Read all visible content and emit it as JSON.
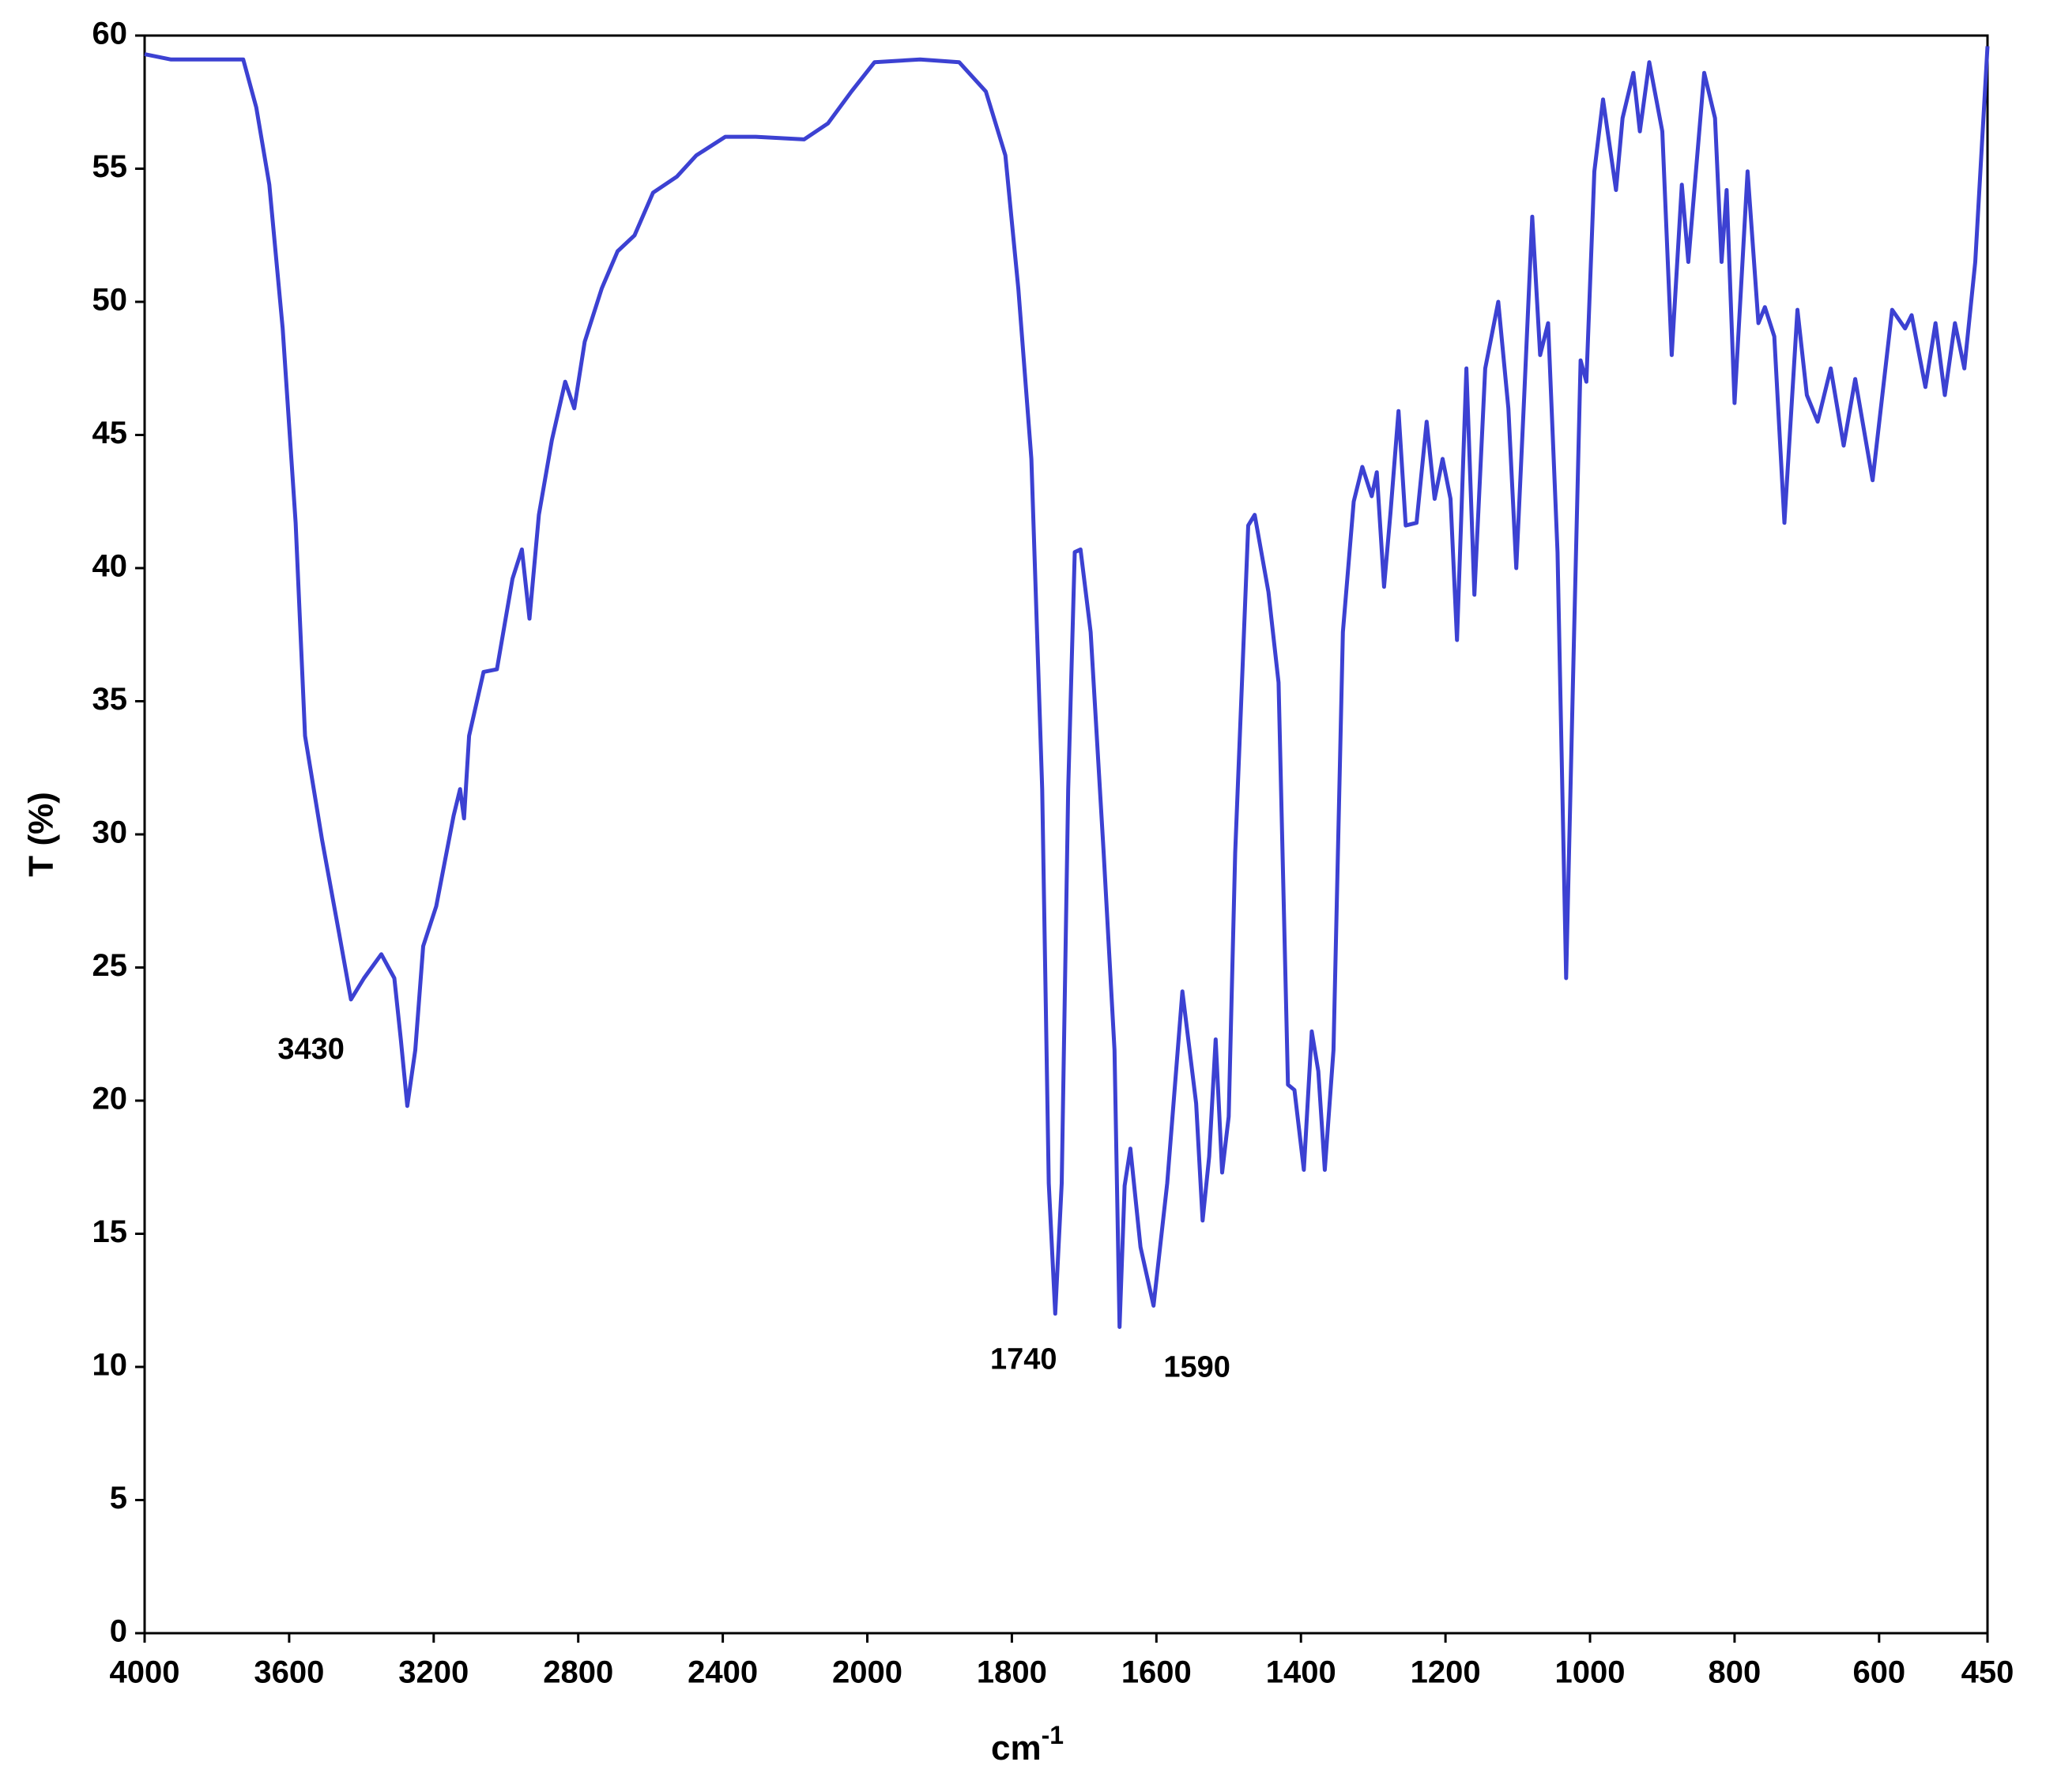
{
  "chart_data": {
    "type": "line",
    "xlabel": {
      "text": "cm",
      "superscript": "-1"
    },
    "ylabel": "T (%)",
    "xlim": [
      4000,
      450
    ],
    "ylim": [
      0,
      60
    ],
    "xbreak": 2000,
    "xbreak_factor": 2,
    "xticks": [
      4000,
      3600,
      3200,
      2800,
      2400,
      2000,
      1800,
      1600,
      1400,
      1200,
      1000,
      800,
      600,
      450
    ],
    "yticks": [
      0,
      5,
      10,
      15,
      20,
      25,
      30,
      35,
      40,
      45,
      50,
      55,
      60
    ],
    "x": [
      4000,
      3927,
      3855,
      3727,
      3691,
      3655,
      3618,
      3582,
      3556,
      3509,
      3462,
      3429,
      3393,
      3345,
      3309,
      3291,
      3273,
      3251,
      3229,
      3193,
      3145,
      3127,
      3116,
      3102,
      3062,
      3025,
      2982,
      2956,
      2935,
      2909,
      2873,
      2836,
      2811,
      2782,
      2735,
      2691,
      2644,
      2593,
      2527,
      2473,
      2393,
      2309,
      2175,
      2109,
      2044,
      1990,
      1927,
      1873,
      1836,
      1809,
      1791,
      1773,
      1758,
      1749,
      1740,
      1731,
      1722,
      1713,
      1705,
      1691,
      1673,
      1658,
      1651,
      1644,
      1636,
      1622,
      1604,
      1585,
      1564,
      1545,
      1536,
      1527,
      1518,
      1509,
      1500,
      1491,
      1473,
      1464,
      1445,
      1431,
      1418,
      1409,
      1396,
      1385,
      1376,
      1367,
      1355,
      1342,
      1327,
      1315,
      1302,
      1295,
      1285,
      1276,
      1265,
      1255,
      1240,
      1226,
      1215,
      1204,
      1193,
      1184,
      1171,
      1160,
      1145,
      1127,
      1113,
      1102,
      1091,
      1080,
      1069,
      1058,
      1045,
      1033,
      1022,
      1013,
      1005,
      994,
      982,
      964,
      955,
      940,
      931,
      918,
      900,
      887,
      873,
      864,
      842,
      827,
      818,
      811,
      800,
      782,
      767,
      758,
      745,
      731,
      713,
      700,
      685,
      667,
      649,
      633,
      609,
      582,
      564,
      555,
      536,
      522,
      509,
      495,
      482,
      467,
      450
    ],
    "series": [
      {
        "color": "#3c41d2",
        "values": [
          59.3,
          59.1,
          59.1,
          59.1,
          57.3,
          54.4,
          49.0,
          41.7,
          33.7,
          29.8,
          26.3,
          23.8,
          24.6,
          25.5,
          24.6,
          22.3,
          19.8,
          21.9,
          25.8,
          27.3,
          30.7,
          31.7,
          30.6,
          33.7,
          36.1,
          36.2,
          39.6,
          40.7,
          38.1,
          42.0,
          44.8,
          47.0,
          46.0,
          48.5,
          50.5,
          51.9,
          52.5,
          54.1,
          54.7,
          55.5,
          56.2,
          56.2,
          56.1,
          56.7,
          57.9,
          59.0,
          59.1,
          59.0,
          57.9,
          55.5,
          50.5,
          44.1,
          31.7,
          16.9,
          12.0,
          16.9,
          31.7,
          40.6,
          40.7,
          37.6,
          29.3,
          21.9,
          11.5,
          16.8,
          18.2,
          14.5,
          12.3,
          16.9,
          24.1,
          19.9,
          15.5,
          17.9,
          22.3,
          17.3,
          19.4,
          29.3,
          41.6,
          42.0,
          39.1,
          35.7,
          20.6,
          20.4,
          17.4,
          22.6,
          21.1,
          17.4,
          21.9,
          37.6,
          42.5,
          43.8,
          42.7,
          43.6,
          39.3,
          42.1,
          45.9,
          41.6,
          41.7,
          45.5,
          42.6,
          44.1,
          42.6,
          37.3,
          47.5,
          39.0,
          47.5,
          50.0,
          46.0,
          40.0,
          46.5,
          53.2,
          48.0,
          49.2,
          40.6,
          24.6,
          37.6,
          47.8,
          47.0,
          54.9,
          57.6,
          54.2,
          56.9,
          58.6,
          56.4,
          59.0,
          56.4,
          48.0,
          54.4,
          51.5,
          58.6,
          56.9,
          51.5,
          54.2,
          46.2,
          54.9,
          49.2,
          49.8,
          48.7,
          41.7,
          49.7,
          46.5,
          45.5,
          47.5,
          44.6,
          47.1,
          43.3,
          49.7,
          49.0,
          49.5,
          46.8,
          49.2,
          46.5,
          49.2,
          47.5,
          51.5,
          59.6
        ]
      }
    ],
    "annotations": [
      {
        "label": "3430",
        "x": 3430,
        "y": 23.8
      },
      {
        "label": "1740",
        "x": 1740,
        "y": 12.0
      },
      {
        "label": "1590",
        "x": 1604,
        "y": 12.3
      }
    ]
  }
}
